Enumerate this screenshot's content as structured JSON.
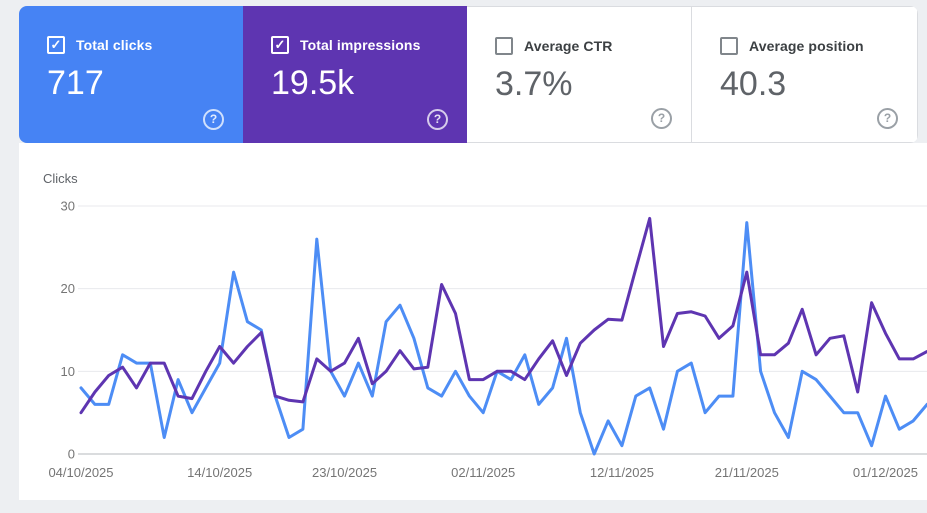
{
  "icons": {
    "help": "?",
    "check": "✓"
  },
  "cards": [
    {
      "label": "Total clicks",
      "value": "717",
      "checked": true,
      "bg": "#4683f4",
      "text_color": "#ffffff"
    },
    {
      "label": "Total impressions",
      "value": "19.5k",
      "checked": true,
      "bg": "#5e35b1",
      "text_color": "#ffffff"
    },
    {
      "label": "Average CTR",
      "value": "3.7%",
      "checked": false,
      "bg": "#ffffff",
      "text_color": "#5f6368"
    },
    {
      "label": "Average position",
      "value": "40.3",
      "checked": false,
      "bg": "#ffffff",
      "text_color": "#5f6368"
    }
  ],
  "chart_data": {
    "type": "line",
    "ylabel": "Clicks",
    "ylim": [
      0,
      30
    ],
    "yticks": [
      0,
      10,
      20,
      30
    ],
    "grid": "horizontal",
    "legend_position": "none",
    "x_start_date": "04/10/2025",
    "x_end_date": "04/12/2025",
    "points_per_series": 62,
    "xtick_labels": [
      "04/10/2025",
      "14/10/2025",
      "23/10/2025",
      "02/11/2025",
      "12/11/2025",
      "21/11/2025",
      "01/12/2025"
    ],
    "xtick_day_index": [
      0,
      10,
      19,
      29,
      39,
      48,
      58
    ],
    "series": [
      {
        "name": "Total clicks",
        "color": "#4d8df5",
        "values": [
          8,
          6,
          6,
          12,
          11,
          11,
          2,
          9,
          5,
          8,
          11,
          22,
          16,
          15,
          7,
          2,
          3,
          26,
          10,
          7,
          11,
          7,
          16,
          18,
          14,
          8,
          7,
          10,
          7,
          5,
          10,
          9,
          12,
          6,
          8,
          14,
          5,
          0,
          4,
          1,
          7,
          8,
          3,
          10,
          11,
          5,
          7,
          7,
          28,
          10,
          5,
          2,
          10,
          9,
          7,
          5,
          5,
          1,
          7,
          3,
          4,
          6
        ]
      },
      {
        "name": "Total impressions (scaled to clicks axis)",
        "color": "#5e35b1",
        "values": [
          5,
          7.5,
          9.5,
          10.5,
          8,
          11,
          11,
          7,
          6.7,
          10,
          13,
          11,
          13,
          14.7,
          7,
          6.5,
          6.3,
          11.5,
          10,
          11,
          14,
          8.5,
          10,
          12.5,
          10.3,
          10.5,
          20.5,
          17,
          9,
          9,
          10,
          10,
          9,
          11.5,
          13.7,
          9.5,
          13.4,
          15,
          16.3,
          16.2,
          22.4,
          28.5,
          13,
          17,
          17.2,
          16.7,
          14,
          15.5,
          22,
          12,
          12,
          13.4,
          17.5,
          12,
          14,
          14.3,
          7.5,
          18.3,
          14.6,
          11.5,
          11.5,
          12.4
        ]
      }
    ],
    "colors": {
      "gridline": "#e8eaed",
      "baseline": "#b4b8bc",
      "tick_text": "#757575"
    }
  }
}
